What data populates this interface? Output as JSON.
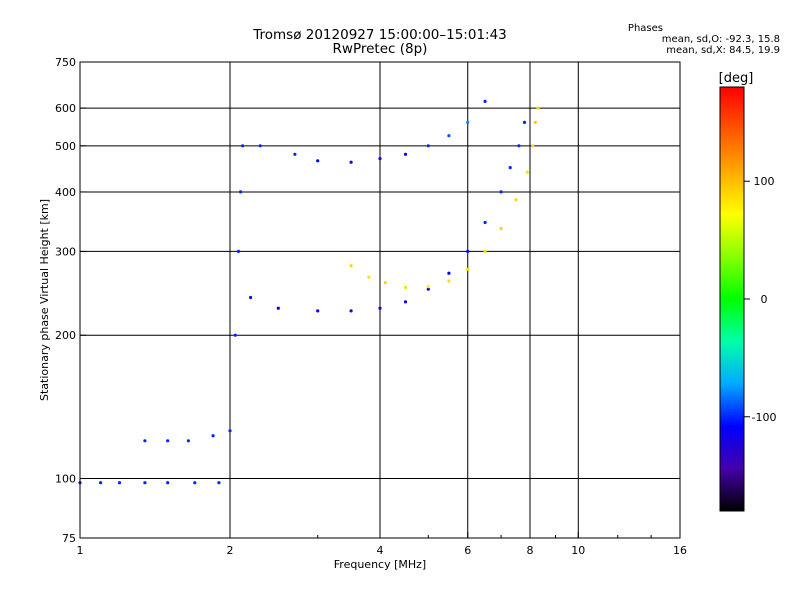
{
  "chart_data": {
    "type": "scatter",
    "title": "Tromsø 20120927 15:00:00–15:01:43",
    "subtitle": "RwPretec (8p)",
    "xlabel": "Frequency [MHz]",
    "ylabel": "Stationary phase Virtual Height [km]",
    "x_scale": "log2",
    "y_scale": "log",
    "xlim": [
      1,
      16
    ],
    "ylim": [
      75,
      750
    ],
    "xticks": [
      1,
      2,
      4,
      6,
      8,
      10,
      16
    ],
    "yticks": [
      75,
      100,
      200,
      300,
      400,
      500,
      600,
      750
    ],
    "x_gridlines": [
      2,
      4,
      6,
      8,
      10
    ],
    "y_gridlines": [
      100,
      200,
      300,
      400,
      500,
      600
    ],
    "grid": true,
    "legend": {
      "title": "Phases",
      "lines": [
        "mean, sd,O: -92.3, 15.8",
        "mean, sd,X: 84.5, 19.9"
      ],
      "placement": "top-right"
    },
    "colorbar": {
      "label": "[deg]",
      "ticks": [
        100,
        0,
        -100
      ],
      "range": [
        -180,
        180
      ],
      "colors": [
        "#000000",
        "#4400aa",
        "#0000ff",
        "#00aaff",
        "#00ffaa",
        "#00ff00",
        "#88ff00",
        "#ffff00",
        "#ffaa00",
        "#ff5500",
        "#ff0000"
      ]
    },
    "series": [
      {
        "points": [
          [
            1.0,
            98,
            -100
          ],
          [
            1.1,
            98,
            -100
          ],
          [
            1.2,
            98,
            -100
          ],
          [
            1.35,
            98,
            -100
          ],
          [
            1.5,
            98,
            -100
          ],
          [
            1.7,
            98,
            -100
          ],
          [
            1.9,
            98,
            -100
          ]
        ]
      },
      {
        "points": [
          [
            1.35,
            120,
            -100
          ],
          [
            1.5,
            120,
            -100
          ],
          [
            1.65,
            120,
            -100
          ],
          [
            1.85,
            123,
            -100
          ],
          [
            2.0,
            126,
            -100
          ],
          [
            2.05,
            200,
            -100
          ],
          [
            2.08,
            300,
            -100
          ],
          [
            2.1,
            400,
            -100
          ],
          [
            2.12,
            500,
            -100
          ]
        ]
      },
      {
        "points": [
          [
            2.2,
            240,
            -105
          ],
          [
            2.5,
            228,
            -110
          ],
          [
            3.0,
            225,
            -120
          ],
          [
            3.5,
            225,
            -125
          ],
          [
            4.0,
            228,
            -125
          ],
          [
            4.5,
            235,
            -120
          ],
          [
            5.0,
            250,
            -115
          ],
          [
            5.5,
            270,
            -110
          ],
          [
            6.0,
            300,
            -105
          ],
          [
            6.5,
            345,
            -100
          ],
          [
            7.0,
            400,
            -100
          ],
          [
            7.3,
            450,
            -100
          ],
          [
            7.6,
            500,
            -100
          ],
          [
            7.8,
            560,
            -100
          ]
        ]
      },
      {
        "points": [
          [
            2.3,
            500,
            -100
          ],
          [
            2.7,
            480,
            -100
          ],
          [
            3.0,
            465,
            -110
          ],
          [
            3.5,
            462,
            -120
          ],
          [
            4.0,
            470,
            -120
          ],
          [
            4.5,
            480,
            -110
          ],
          [
            5.0,
            500,
            -100
          ],
          [
            5.5,
            525,
            -90
          ],
          [
            6.0,
            560,
            -80
          ],
          [
            6.5,
            620,
            -100
          ]
        ]
      },
      {
        "points": [
          [
            3.5,
            280,
            90
          ],
          [
            3.8,
            265,
            85
          ],
          [
            4.1,
            258,
            90
          ],
          [
            4.5,
            252,
            85
          ],
          [
            5.0,
            253,
            80
          ],
          [
            5.5,
            260,
            85
          ],
          [
            6.0,
            275,
            90
          ],
          [
            6.5,
            300,
            85
          ],
          [
            7.0,
            335,
            90
          ],
          [
            7.5,
            385,
            90
          ],
          [
            7.9,
            440,
            85
          ],
          [
            8.1,
            500,
            90
          ],
          [
            8.2,
            560,
            95
          ],
          [
            8.3,
            600,
            90
          ]
        ]
      }
    ]
  }
}
